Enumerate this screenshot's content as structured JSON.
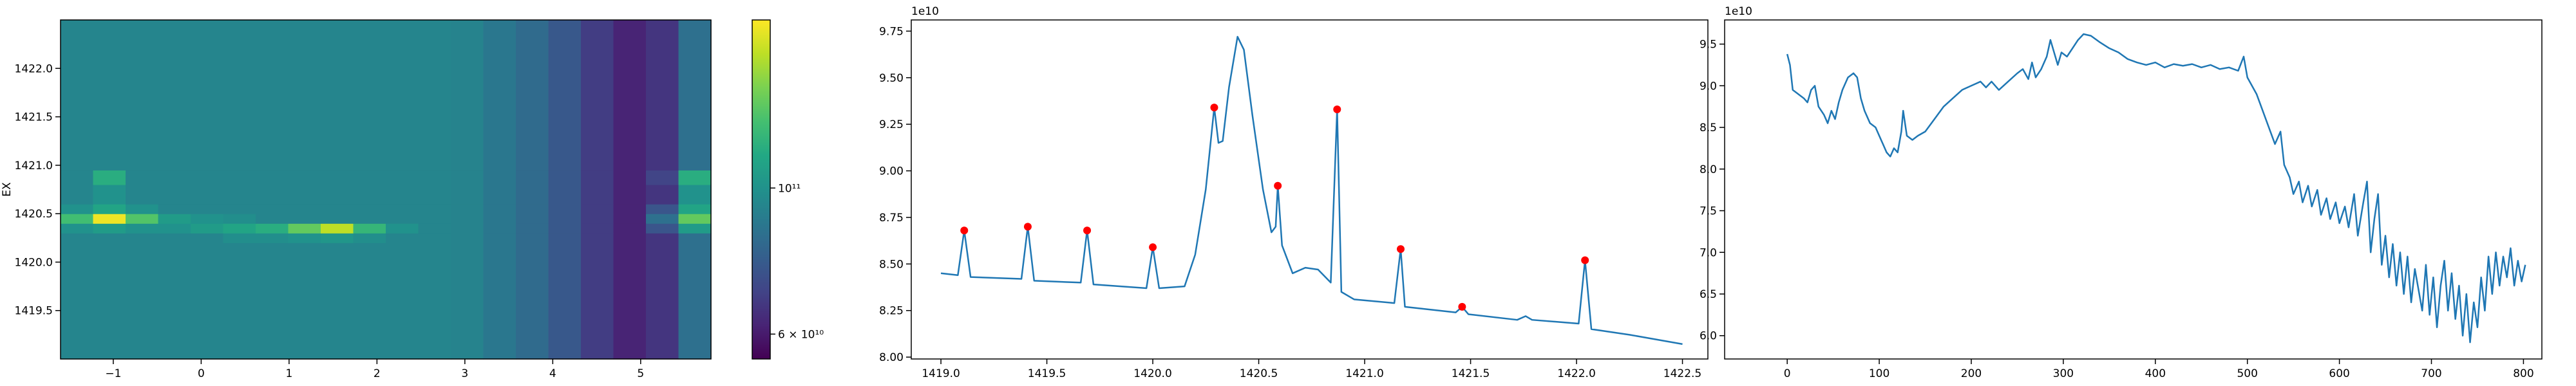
{
  "chart_data": [
    {
      "type": "heatmap",
      "ylabel": "EX",
      "x_edges": [
        -1.6,
        -1.23,
        -0.86,
        -0.49,
        -0.12,
        0.25,
        0.62,
        0.99,
        1.36,
        1.73,
        2.1,
        2.47,
        2.84,
        3.21,
        3.58,
        3.95,
        4.32,
        4.69,
        5.06,
        5.43,
        5.8
      ],
      "y_edges": [
        1419.0,
        1420.2,
        1420.3,
        1420.4,
        1420.5,
        1420.6,
        1420.8,
        1420.95,
        1422.5
      ],
      "values": [
        [
          94000000000.0,
          94000000000.0,
          94000000000.0,
          94000000000.0,
          94000000000.0,
          94000000000.0,
          94000000000.0,
          94000000000.0,
          94000000000.0,
          94000000000.0,
          94000000000.0,
          94000000000.0,
          93000000000.0,
          88000000000.0,
          83000000000.0,
          76000000000.0,
          68000000000.0,
          62000000000.0,
          66000000000.0,
          85000000000.0
        ],
        [
          94000000000.0,
          94000000000.0,
          94000000000.0,
          94000000000.0,
          94000000000.0,
          98000000000.0,
          98000000000.0,
          100000000000.0,
          102000000000.0,
          98000000000.0,
          94000000000.0,
          94000000000.0,
          93000000000.0,
          88000000000.0,
          83000000000.0,
          76000000000.0,
          68000000000.0,
          62000000000.0,
          66000000000.0,
          85000000000.0
        ],
        [
          100000000000.0,
          105000000000.0,
          100000000000.0,
          100000000000.0,
          105000000000.0,
          110000000000.0,
          115000000000.0,
          135000000000.0,
          160000000000.0,
          120000000000.0,
          100000000000.0,
          94000000000.0,
          93000000000.0,
          88000000000.0,
          83000000000.0,
          76000000000.0,
          68000000000.0,
          62000000000.0,
          75000000000.0,
          105000000000.0
        ],
        [
          125000000000.0,
          175000000000.0,
          130000000000.0,
          105000000000.0,
          100000000000.0,
          98000000000.0,
          94000000000.0,
          94000000000.0,
          94000000000.0,
          94000000000.0,
          94000000000.0,
          94000000000.0,
          93000000000.0,
          88000000000.0,
          83000000000.0,
          76000000000.0,
          68000000000.0,
          62000000000.0,
          85000000000.0,
          135000000000.0
        ],
        [
          100000000000.0,
          110000000000.0,
          100000000000.0,
          94000000000.0,
          94000000000.0,
          94000000000.0,
          94000000000.0,
          94000000000.0,
          94000000000.0,
          94000000000.0,
          94000000000.0,
          94000000000.0,
          93000000000.0,
          88000000000.0,
          83000000000.0,
          76000000000.0,
          68000000000.0,
          62000000000.0,
          75000000000.0,
          110000000000.0
        ],
        [
          94000000000.0,
          100000000000.0,
          94000000000.0,
          94000000000.0,
          94000000000.0,
          94000000000.0,
          94000000000.0,
          94000000000.0,
          94000000000.0,
          94000000000.0,
          94000000000.0,
          94000000000.0,
          93000000000.0,
          88000000000.0,
          83000000000.0,
          76000000000.0,
          68000000000.0,
          62000000000.0,
          66000000000.0,
          100000000000.0
        ],
        [
          94000000000.0,
          115000000000.0,
          94000000000.0,
          94000000000.0,
          94000000000.0,
          94000000000.0,
          94000000000.0,
          94000000000.0,
          94000000000.0,
          94000000000.0,
          94000000000.0,
          94000000000.0,
          93000000000.0,
          88000000000.0,
          83000000000.0,
          76000000000.0,
          68000000000.0,
          62000000000.0,
          70000000000.0,
          115000000000.0
        ],
        [
          94000000000.0,
          94000000000.0,
          94000000000.0,
          94000000000.0,
          94000000000.0,
          94000000000.0,
          94000000000.0,
          94000000000.0,
          94000000000.0,
          94000000000.0,
          94000000000.0,
          94000000000.0,
          93000000000.0,
          88000000000.0,
          83000000000.0,
          76000000000.0,
          68000000000.0,
          62000000000.0,
          66000000000.0,
          85000000000.0
        ]
      ],
      "xlim": [
        -1.6,
        5.8
      ],
      "ylim": [
        1419.0,
        1422.5
      ],
      "xticks": [
        {
          "value": -1,
          "label": "−1"
        },
        0,
        1,
        2,
        3,
        4,
        5
      ],
      "yticks": [
        1419.5,
        {
          "value": 1420,
          "label": "1420.0"
        },
        1420.5,
        {
          "value": 1421,
          "label": "1421.0"
        },
        1421.5,
        {
          "value": 1422,
          "label": "1422.0"
        }
      ],
      "colorbar": {
        "scale": "log",
        "colormap": "viridis",
        "lim": [
          55000000000.0,
          180000000000.0
        ],
        "ticks": [
          {
            "value": 60000000000.0,
            "label": "6 × 10¹⁰"
          },
          {
            "value": 100000000000.0,
            "label": "10¹¹"
          }
        ]
      }
    },
    {
      "type": "line",
      "offset_label": "1e10",
      "x": [
        1419.0,
        1419.08,
        1419.11,
        1419.14,
        1419.38,
        1419.41,
        1419.44,
        1419.66,
        1419.69,
        1419.72,
        1419.97,
        1420.0,
        1420.03,
        1420.15,
        1420.2,
        1420.25,
        1420.29,
        1420.31,
        1420.33,
        1420.36,
        1420.4,
        1420.43,
        1420.47,
        1420.52,
        1420.56,
        1420.58,
        1420.59,
        1420.61,
        1420.66,
        1420.72,
        1420.78,
        1420.84,
        1420.87,
        1420.89,
        1420.95,
        1421.14,
        1421.17,
        1421.19,
        1421.43,
        1421.46,
        1421.49,
        1421.72,
        1421.76,
        1421.79,
        1422.01,
        1422.04,
        1422.07,
        1422.25,
        1422.3,
        1422.5
      ],
      "series": [
        {
          "color": "#1f77b4",
          "values": [
            8.45,
            8.44,
            8.68,
            8.43,
            8.42,
            8.7,
            8.41,
            8.4,
            8.68,
            8.39,
            8.37,
            8.59,
            8.37,
            8.38,
            8.55,
            8.9,
            9.34,
            9.15,
            9.16,
            9.45,
            9.72,
            9.65,
            9.3,
            8.9,
            8.67,
            8.7,
            8.92,
            8.6,
            8.45,
            8.48,
            8.47,
            8.4,
            9.33,
            8.35,
            8.31,
            8.29,
            8.58,
            8.27,
            8.24,
            8.27,
            8.23,
            8.2,
            8.22,
            8.2,
            8.18,
            8.52,
            8.15,
            8.12,
            8.11,
            8.07
          ]
        }
      ],
      "points": {
        "color": "red",
        "x": [
          1419.11,
          1419.41,
          1419.69,
          1420.0,
          1420.29,
          1420.59,
          1420.87,
          1421.17,
          1421.46,
          1422.04
        ],
        "values": [
          8.68,
          8.7,
          8.68,
          8.59,
          9.34,
          8.92,
          9.33,
          8.58,
          8.27,
          8.52
        ]
      },
      "xlim": [
        1418.86,
        1422.62
      ],
      "ylim": [
        7.99,
        9.81
      ],
      "xticks": [
        {
          "value": 1419,
          "label": "1419.0"
        },
        1419.5,
        {
          "value": 1420,
          "label": "1420.0"
        },
        1420.5,
        {
          "value": 1421,
          "label": "1421.0"
        },
        1421.5,
        {
          "value": 1422,
          "label": "1422.0"
        },
        1422.5
      ],
      "yticks": [
        {
          "value": 8,
          "label": "8.00"
        },
        8.25,
        {
          "value": 8.5,
          "label": "8.50"
        },
        8.75,
        {
          "value": 9,
          "label": "9.00"
        },
        9.25,
        {
          "value": 9.5,
          "label": "9.50"
        },
        9.75
      ]
    },
    {
      "type": "line",
      "offset_label": "1e10",
      "x": [
        0,
        3,
        6,
        12,
        18,
        22,
        26,
        30,
        34,
        40,
        44,
        48,
        52,
        56,
        60,
        66,
        72,
        76,
        80,
        84,
        90,
        96,
        100,
        104,
        108,
        112,
        116,
        120,
        124,
        126,
        130,
        136,
        142,
        150,
        160,
        170,
        180,
        190,
        200,
        210,
        216,
        222,
        230,
        240,
        250,
        256,
        262,
        266,
        270,
        276,
        282,
        286,
        290,
        294,
        298,
        304,
        310,
        316,
        322,
        330,
        340,
        350,
        360,
        370,
        380,
        390,
        400,
        410,
        420,
        430,
        440,
        450,
        460,
        470,
        480,
        490,
        496,
        500,
        510,
        520,
        530,
        536,
        540,
        546,
        550,
        556,
        560,
        566,
        570,
        576,
        580,
        586,
        590,
        596,
        600,
        606,
        610,
        616,
        620,
        626,
        630,
        634,
        638,
        642,
        646,
        650,
        654,
        658,
        662,
        666,
        670,
        674,
        678,
        682,
        686,
        690,
        694,
        698,
        702,
        706,
        710,
        714,
        718,
        722,
        726,
        730,
        734,
        738,
        742,
        746,
        750,
        754,
        758,
        762,
        766,
        770,
        774,
        778,
        782,
        786,
        790,
        794,
        798,
        802
      ],
      "series": [
        {
          "color": "#1f77b4",
          "values": [
            9.38,
            9.25,
            8.95,
            8.9,
            8.85,
            8.8,
            8.95,
            9.0,
            8.75,
            8.65,
            8.55,
            8.7,
            8.6,
            8.8,
            8.95,
            9.1,
            9.15,
            9.1,
            8.85,
            8.7,
            8.55,
            8.5,
            8.4,
            8.3,
            8.2,
            8.15,
            8.25,
            8.2,
            8.45,
            8.7,
            8.4,
            8.35,
            8.4,
            8.45,
            8.6,
            8.75,
            8.85,
            8.95,
            9.0,
            9.05,
            8.98,
            9.05,
            8.95,
            9.05,
            9.15,
            9.2,
            9.08,
            9.28,
            9.1,
            9.2,
            9.35,
            9.55,
            9.4,
            9.25,
            9.4,
            9.35,
            9.45,
            9.55,
            9.62,
            9.6,
            9.52,
            9.45,
            9.4,
            9.32,
            9.28,
            9.25,
            9.28,
            9.22,
            9.26,
            9.24,
            9.26,
            9.22,
            9.25,
            9.2,
            9.22,
            9.18,
            9.35,
            9.1,
            8.9,
            8.6,
            8.3,
            8.45,
            8.05,
            7.9,
            7.7,
            7.85,
            7.6,
            7.8,
            7.55,
            7.75,
            7.45,
            7.65,
            7.4,
            7.6,
            7.35,
            7.55,
            7.3,
            7.7,
            7.2,
            7.6,
            7.85,
            7.0,
            7.4,
            7.7,
            6.85,
            7.2,
            6.7,
            7.1,
            6.6,
            7.0,
            6.5,
            6.95,
            6.4,
            6.8,
            6.55,
            6.3,
            6.85,
            6.25,
            6.7,
            6.1,
            6.6,
            6.9,
            6.3,
            6.75,
            6.2,
            6.6,
            6.0,
            6.5,
            5.92,
            6.4,
            6.1,
            6.7,
            6.3,
            6.95,
            6.5,
            7.0,
            6.6,
            6.95,
            6.7,
            7.05,
            6.6,
            6.9,
            6.65,
            6.85
          ]
        }
      ],
      "xlim": [
        -68,
        820
      ],
      "ylim": [
        5.72,
        9.79
      ],
      "xticks": [
        0,
        100,
        200,
        300,
        400,
        500,
        600,
        700,
        800
      ],
      "yticks": [
        {
          "value": 6,
          "label": "6.0"
        },
        6.5,
        {
          "value": 7,
          "label": "7.0"
        },
        7.5,
        {
          "value": 8,
          "label": "8.0"
        },
        8.5,
        {
          "value": 9,
          "label": "9.0"
        },
        9.5
      ]
    }
  ]
}
